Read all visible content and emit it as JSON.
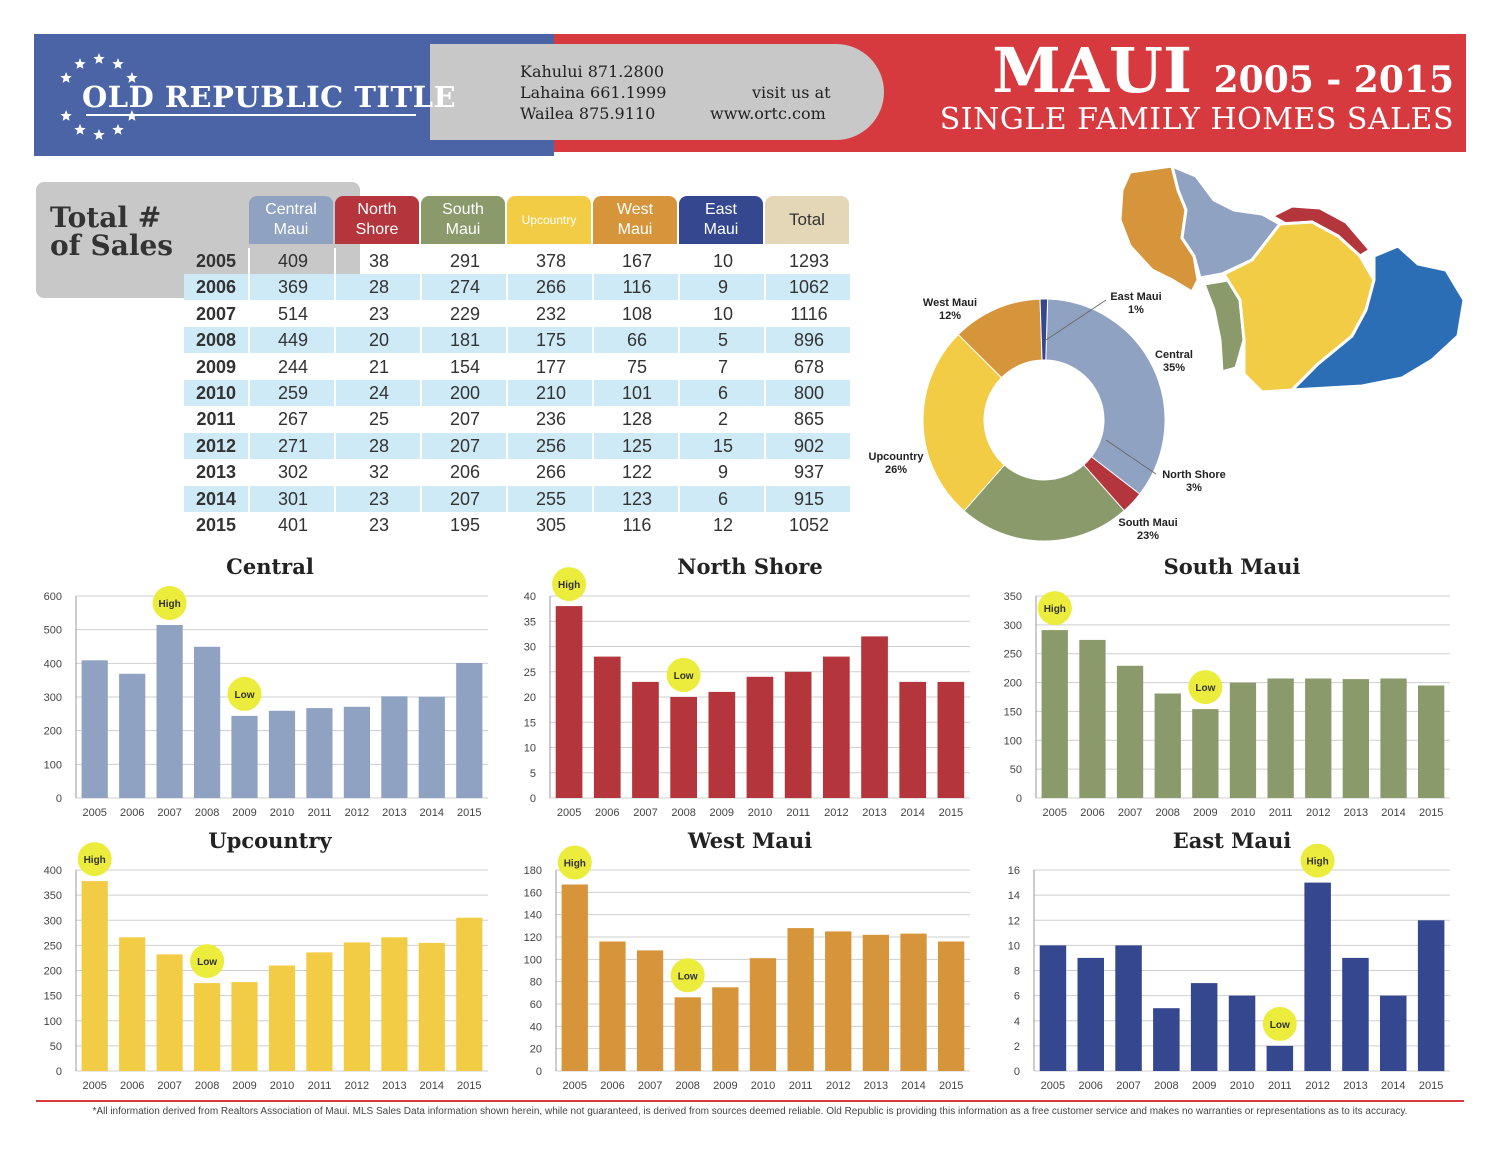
{
  "header": {
    "logo_text": "OLD REPUBLIC TITLE",
    "phones": [
      "Kahului 871.2800",
      "Lahaina 661.1999",
      "Wailea 875.9110"
    ],
    "visit_label": "visit us at",
    "website": "www.ortc.com",
    "title_main": "MAUI",
    "title_years": "2005 - 2015",
    "subtitle": "SINGLE FAMILY HOMES SALES"
  },
  "colors": {
    "central": "#8fa2c1",
    "north_shore": "#b5353c",
    "south_maui": "#8b9a6b",
    "upcountry": "#f2cc45",
    "west_maui": "#d6953a",
    "east_maui": "#34478f",
    "total": "#e4d7b8",
    "row_alt": "#cfeaf7",
    "marker": "#ecec3c",
    "map_blue": "#2c6eb5"
  },
  "table": {
    "title_line1": "Total #",
    "title_line2": "of Sales",
    "headers": [
      {
        "line1": "Central",
        "line2": "Maui"
      },
      {
        "line1": "North",
        "line2": "Shore"
      },
      {
        "line1": "South",
        "line2": "Maui"
      },
      {
        "line1": "Upcountry",
        "line2": ""
      },
      {
        "line1": "West",
        "line2": "Maui"
      },
      {
        "line1": "East",
        "line2": "Maui"
      },
      {
        "line1": "Total",
        "line2": ""
      }
    ],
    "rows": [
      [
        "2005",
        "409",
        "38",
        "291",
        "378",
        "167",
        "10",
        "1293"
      ],
      [
        "2006",
        "369",
        "28",
        "274",
        "266",
        "116",
        "9",
        "1062"
      ],
      [
        "2007",
        "514",
        "23",
        "229",
        "232",
        "108",
        "10",
        "1116"
      ],
      [
        "2008",
        "449",
        "20",
        "181",
        "175",
        "66",
        "5",
        "896"
      ],
      [
        "2009",
        "244",
        "21",
        "154",
        "177",
        "75",
        "7",
        "678"
      ],
      [
        "2010",
        "259",
        "24",
        "200",
        "210",
        "101",
        "6",
        "800"
      ],
      [
        "2011",
        "267",
        "25",
        "207",
        "236",
        "128",
        "2",
        "865"
      ],
      [
        "2012",
        "271",
        "28",
        "207",
        "256",
        "125",
        "15",
        "902"
      ],
      [
        "2013",
        "302",
        "32",
        "206",
        "266",
        "122",
        "9",
        "937"
      ],
      [
        "2014",
        "301",
        "23",
        "207",
        "255",
        "123",
        "6",
        "915"
      ],
      [
        "2015",
        "401",
        "23",
        "195",
        "305",
        "116",
        "12",
        "1052"
      ]
    ]
  },
  "chart_data": [
    {
      "type": "pie",
      "title": "",
      "labels": [
        "Central",
        "North Shore",
        "South Maui",
        "Upcountry",
        "West Maui",
        "East Maui"
      ],
      "values": [
        35,
        3,
        23,
        26,
        12,
        1
      ],
      "value_labels": [
        "35%",
        "3%",
        "23%",
        "26%",
        "12%",
        "1%"
      ]
    },
    {
      "type": "bar",
      "title": "Central",
      "categories": [
        "2005",
        "2006",
        "2007",
        "2008",
        "2009",
        "2010",
        "2011",
        "2012",
        "2013",
        "2014",
        "2015"
      ],
      "values": [
        409,
        369,
        514,
        449,
        244,
        259,
        267,
        271,
        302,
        301,
        401
      ],
      "ylim": [
        0,
        600
      ],
      "yticks": [
        "0",
        "100",
        "200",
        "300",
        "400",
        "500",
        "600"
      ],
      "high_index": 2,
      "low_index": 4,
      "high_label": "High",
      "low_label": "Low"
    },
    {
      "type": "bar",
      "title": "North Shore",
      "categories": [
        "2005",
        "2006",
        "2007",
        "2008",
        "2009",
        "2010",
        "2011",
        "2012",
        "2013",
        "2014",
        "2015"
      ],
      "values": [
        38,
        28,
        23,
        20,
        21,
        24,
        25,
        28,
        32,
        23,
        23
      ],
      "ylim": [
        0,
        40
      ],
      "yticks": [
        "0",
        "5",
        "10",
        "15",
        "20",
        "25",
        "30",
        "35",
        "40"
      ],
      "high_index": 0,
      "low_index": 3,
      "high_label": "High",
      "low_label": "Low"
    },
    {
      "type": "bar",
      "title": "South Maui",
      "categories": [
        "2005",
        "2006",
        "2007",
        "2008",
        "2009",
        "2010",
        "2011",
        "2012",
        "2013",
        "2014",
        "2015"
      ],
      "values": [
        291,
        274,
        229,
        181,
        154,
        200,
        207,
        207,
        206,
        207,
        195
      ],
      "ylim": [
        0,
        350
      ],
      "yticks": [
        "0",
        "50",
        "100",
        "150",
        "200",
        "250",
        "300",
        "350"
      ],
      "high_index": 0,
      "low_index": 4,
      "high_label": "High",
      "low_label": "Low"
    },
    {
      "type": "bar",
      "title": "Upcountry",
      "categories": [
        "2005",
        "2006",
        "2007",
        "2008",
        "2009",
        "2010",
        "2011",
        "2012",
        "2013",
        "2014",
        "2015"
      ],
      "values": [
        378,
        266,
        232,
        175,
        177,
        210,
        236,
        256,
        266,
        255,
        305
      ],
      "ylim": [
        0,
        400
      ],
      "yticks": [
        "0",
        "50",
        "100",
        "150",
        "200",
        "250",
        "300",
        "350",
        "400"
      ],
      "high_index": 0,
      "low_index": 3,
      "high_label": "High",
      "low_label": "Low"
    },
    {
      "type": "bar",
      "title": "West Maui",
      "categories": [
        "2005",
        "2006",
        "2007",
        "2008",
        "2009",
        "2010",
        "2011",
        "2012",
        "2013",
        "2014",
        "2015"
      ],
      "values": [
        167,
        116,
        108,
        66,
        75,
        101,
        128,
        125,
        122,
        123,
        116
      ],
      "ylim": [
        0,
        180
      ],
      "yticks": [
        "0",
        "20",
        "40",
        "60",
        "80",
        "100",
        "120",
        "140",
        "160",
        "180"
      ],
      "high_index": 0,
      "low_index": 3,
      "high_label": "High",
      "low_label": "Low"
    },
    {
      "type": "bar",
      "title": "East Maui",
      "categories": [
        "2005",
        "2006",
        "2007",
        "2008",
        "2009",
        "2010",
        "2011",
        "2012",
        "2013",
        "2014",
        "2015"
      ],
      "values": [
        10,
        9,
        10,
        5,
        7,
        6,
        2,
        15,
        9,
        6,
        12
      ],
      "ylim": [
        0,
        16
      ],
      "yticks": [
        "0",
        "2",
        "4",
        "6",
        "8",
        "10",
        "12",
        "14",
        "16"
      ],
      "high_index": 7,
      "low_index": 6,
      "high_label": "High",
      "low_label": "Low"
    }
  ],
  "footnote": "*All information derived from Realtors Association of Maui. MLS Sales Data information shown herein, while not guaranteed, is derived from sources deemed reliable. Old Republic is providing this information as a free customer service and makes no warranties or representations as to its accuracy."
}
